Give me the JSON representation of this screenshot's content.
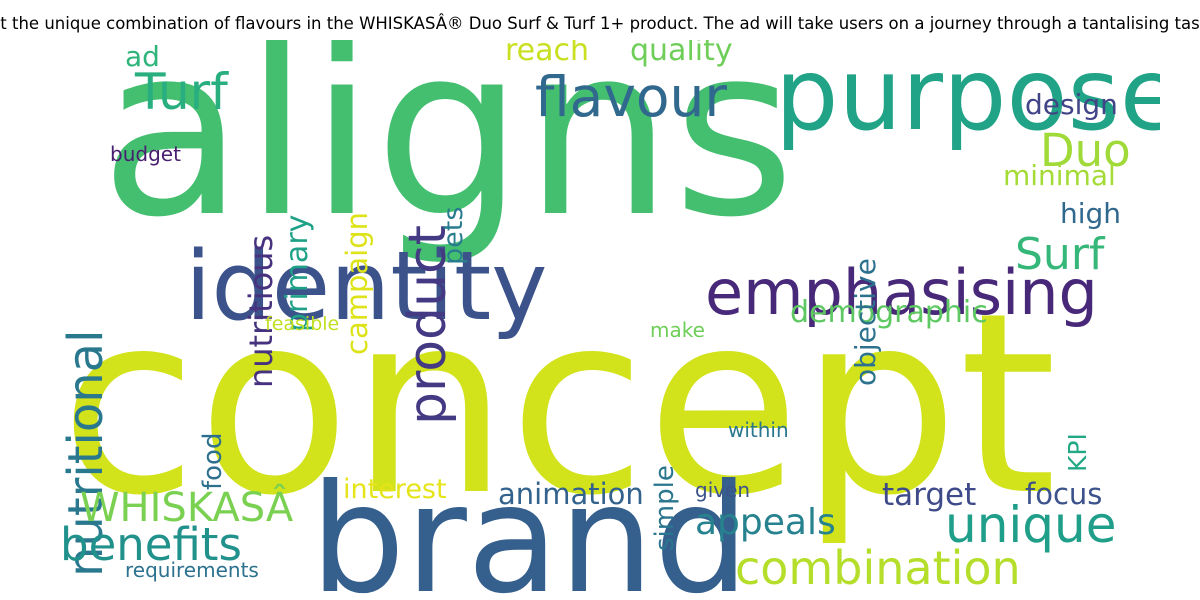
{
  "title": "t the unique combination of flavours in the WHISKASÂ® Duo Surf & Turf 1+ product. The ad will take users on a journey through a tantalising tas",
  "palette": {
    "dark_purple": "#482878",
    "navy": "#3b528b",
    "blue": "#31688e",
    "teal_blue": "#26828e",
    "teal": "#1f9e89",
    "green": "#35b779",
    "bright_green": "#44bf70",
    "light_green": "#6ece58",
    "yellow_green": "#b5de2b",
    "yellow": "#d2e21b"
  },
  "words": [
    {
      "id": "aligns",
      "text": "aligns",
      "color": "#44bf70"
    },
    {
      "id": "concept",
      "text": "concept",
      "color": "#d2e21b"
    },
    {
      "id": "brand",
      "text": "brand",
      "color": "#35608d"
    },
    {
      "id": "purpose",
      "text": "purpose",
      "color": "#20a386"
    },
    {
      "id": "identity",
      "text": "identity",
      "color": "#3b528b"
    },
    {
      "id": "emphasising",
      "text": "emphasising",
      "color": "#482878"
    },
    {
      "id": "flavour",
      "text": "flavour",
      "color": "#31688e"
    },
    {
      "id": "nutritional",
      "text": "nutritional",
      "color": "#2a788e"
    },
    {
      "id": "product",
      "text": "product",
      "color": "#443983"
    },
    {
      "id": "turf",
      "text": "Turf",
      "color": "#29af7f"
    },
    {
      "id": "unique",
      "text": "unique",
      "color": "#1f9e89"
    },
    {
      "id": "combination",
      "text": "combination",
      "color": "#b5de2b"
    },
    {
      "id": "benefits",
      "text": "benefits",
      "color": "#21918c"
    },
    {
      "id": "whiskas",
      "text": "WHISKASÂ",
      "color": "#7ad151"
    },
    {
      "id": "surf",
      "text": "Surf",
      "color": "#35b779"
    },
    {
      "id": "duo",
      "text": "Duo",
      "color": "#a0da39"
    },
    {
      "id": "appeals",
      "text": "appeals",
      "color": "#26828e"
    },
    {
      "id": "animation",
      "text": "animation",
      "color": "#33638d"
    },
    {
      "id": "target",
      "text": "target",
      "color": "#3e4a89"
    },
    {
      "id": "demographic",
      "text": "demographic",
      "color": "#5ec962"
    },
    {
      "id": "reach",
      "text": "reach",
      "color": "#c8e020"
    },
    {
      "id": "quality",
      "text": "quality",
      "color": "#6ece58"
    },
    {
      "id": "nutritious",
      "text": "nutritious",
      "color": "#46327e"
    },
    {
      "id": "primary",
      "text": "primary",
      "color": "#1fa187"
    },
    {
      "id": "campaign",
      "text": "campaign",
      "color": "#dde318"
    },
    {
      "id": "objective",
      "text": "objective",
      "color": "#2c728e"
    },
    {
      "id": "interest",
      "text": "interest",
      "color": "#e5e419"
    },
    {
      "id": "focus",
      "text": "focus",
      "color": "#3b528b"
    },
    {
      "id": "design",
      "text": "design",
      "color": "#414487"
    },
    {
      "id": "minimal",
      "text": "minimal",
      "color": "#a5db36"
    },
    {
      "id": "high",
      "text": "high",
      "color": "#31688e"
    },
    {
      "id": "pets",
      "text": "pets",
      "color": "#287c8e"
    },
    {
      "id": "simple",
      "text": "simple",
      "color": "#2a768e"
    },
    {
      "id": "food",
      "text": "food",
      "color": "#2d708e"
    },
    {
      "id": "kpi",
      "text": "KPI",
      "color": "#22a884"
    },
    {
      "id": "ad",
      "text": "ad",
      "color": "#2fb47c"
    },
    {
      "id": "budget",
      "text": "budget",
      "color": "#481f70"
    },
    {
      "id": "requirements",
      "text": "requirements",
      "color": "#2c728e"
    },
    {
      "id": "within",
      "text": "within",
      "color": "#2a788e"
    },
    {
      "id": "given",
      "text": "given",
      "color": "#3b528b"
    },
    {
      "id": "make",
      "text": "make",
      "color": "#6ece58"
    },
    {
      "id": "feasible",
      "text": "feasible",
      "color": "#c2df23"
    }
  ]
}
